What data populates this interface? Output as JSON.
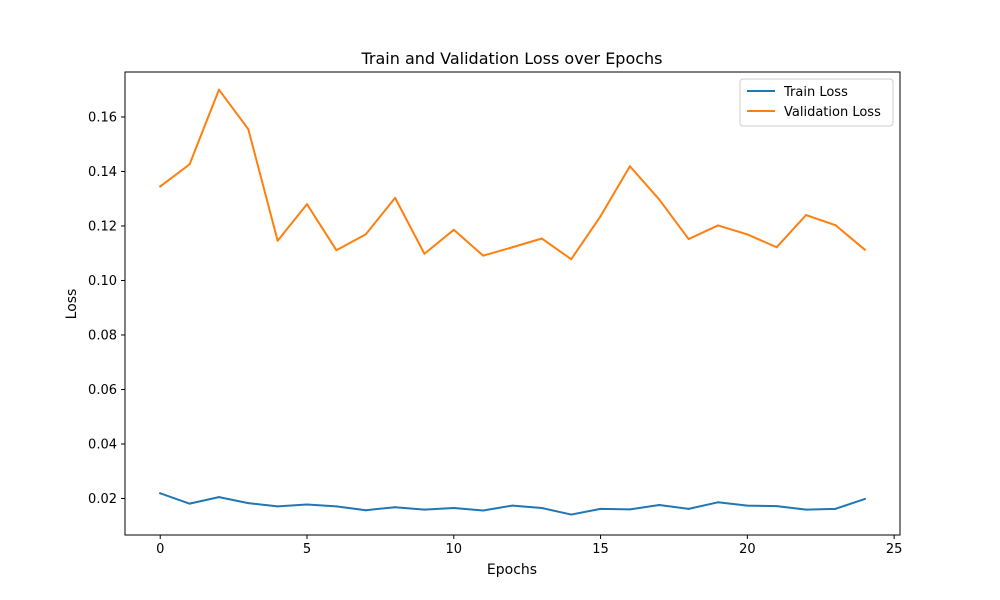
{
  "chart_data": {
    "type": "line",
    "title": "Train and Validation Loss over Epochs",
    "xlabel": "Epochs",
    "ylabel": "Loss",
    "x": [
      0,
      1,
      2,
      3,
      4,
      5,
      6,
      7,
      8,
      9,
      10,
      11,
      12,
      13,
      14,
      15,
      16,
      17,
      18,
      19,
      20,
      21,
      22,
      23,
      24
    ],
    "xlim": [
      -1.2,
      25.2
    ],
    "ylim": [
      0.0066,
      0.1765
    ],
    "x_ticks": [
      0,
      5,
      10,
      15,
      20,
      25
    ],
    "x_tick_labels": [
      "0",
      "5",
      "10",
      "15",
      "20",
      "25"
    ],
    "y_ticks": [
      0.02,
      0.04,
      0.06,
      0.08,
      0.1,
      0.12,
      0.14,
      0.16
    ],
    "y_tick_labels": [
      "0.02",
      "0.04",
      "0.06",
      "0.08",
      "0.10",
      "0.12",
      "0.14",
      "0.16"
    ],
    "grid": false,
    "legend_position": "top-right",
    "series": [
      {
        "name": "Train Loss",
        "color": "#1f77b4",
        "values": [
          0.0219,
          0.0181,
          0.0205,
          0.0183,
          0.0171,
          0.0178,
          0.0171,
          0.0157,
          0.0168,
          0.0159,
          0.0165,
          0.0156,
          0.0174,
          0.0165,
          0.0141,
          0.0162,
          0.016,
          0.0176,
          0.0162,
          0.0186,
          0.0174,
          0.0172,
          0.0159,
          0.0162,
          0.0198
        ]
      },
      {
        "name": "Validation Loss",
        "color": "#ff7f0e",
        "values": [
          0.1345,
          0.1426,
          0.17,
          0.1555,
          0.1146,
          0.128,
          0.1111,
          0.1169,
          0.1303,
          0.1098,
          0.1186,
          0.1091,
          0.1122,
          0.1154,
          0.1078,
          0.1236,
          0.1419,
          0.1297,
          0.1152,
          0.1202,
          0.1169,
          0.1122,
          0.124,
          0.1203,
          0.1113
        ]
      }
    ]
  }
}
